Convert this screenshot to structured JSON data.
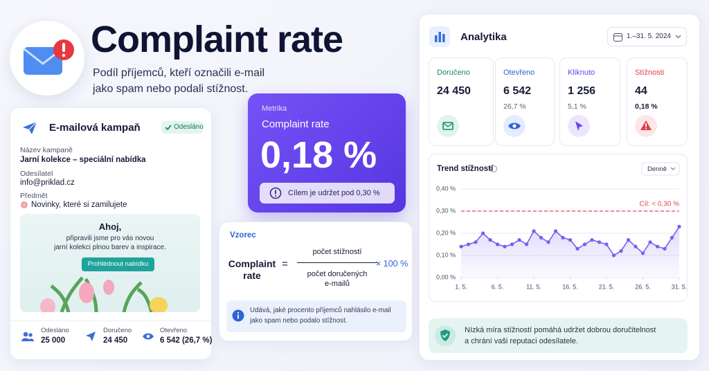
{
  "header": {
    "title": "Complaint rate",
    "subtitle": [
      "Podíl příjemců, kteří označili e-mail",
      "jako spam nebo podali stížnost."
    ]
  },
  "campaign": {
    "title": "E-mailová kampaň",
    "status": "Odesláno",
    "fields": [
      {
        "label": "Název kampaně",
        "value": "Jarní kolekce – speciální nabídka"
      },
      {
        "label": "Odesílatel",
        "value": "info@priklad.cz"
      },
      {
        "label": "Předmět",
        "value": "Novinky, které si zamilujete"
      }
    ],
    "preview": {
      "heading": "Ahoj,",
      "body": [
        "připravili jsme pro vás novou",
        "jarní kolekci plnou barev a inspirace."
      ],
      "button": "Prohlédnout nabídku"
    },
    "stats": [
      {
        "label": "Odesláno",
        "value": "25 000"
      },
      {
        "label": "Doručeno",
        "value": "24 450"
      },
      {
        "label": "Otevřeno",
        "value": "6 542 (26,7 %)"
      }
    ]
  },
  "metric": {
    "label": "Metrika",
    "name": "Complaint rate",
    "value": "0,18 %",
    "note": "Cílem je udržet pod 0,30 %"
  },
  "formula": {
    "label": "Vzorec",
    "left": [
      "Complaint",
      "rate"
    ],
    "equals": "=",
    "numerator": "počet stížností",
    "denominator": [
      "počet doručených",
      "e-mailů"
    ],
    "multiplier": "× 100 %",
    "info": [
      "Udává, jaké procento příjemců nahlásilo e-mail",
      "jako spam nebo podalo stížnost."
    ]
  },
  "analytics": {
    "title": "Analytika",
    "date_range": "1.–31. 5. 2024",
    "kpis": [
      {
        "label": "Doručeno",
        "value": "24 450"
      },
      {
        "label": "Otevřeno",
        "value": "6 542",
        "sub": "26,7 %"
      },
      {
        "label": "Kliknuto",
        "value": "1 256",
        "sub": "5,1 %"
      },
      {
        "label": "Stížnosti",
        "value": "44",
        "sub": "0,18 %"
      }
    ],
    "footer": [
      "Nízká míra stížností pomáhá udržet dobrou doručitelnost",
      "a chrání vaši reputaci odesílatele."
    ]
  },
  "chart_data": {
    "type": "line",
    "title": "Trend stížností",
    "period": "Denně",
    "x": [
      1,
      2,
      3,
      4,
      5,
      6,
      7,
      8,
      9,
      10,
      11,
      12,
      13,
      14,
      15,
      16,
      17,
      18,
      19,
      20,
      21,
      22,
      23,
      24,
      25,
      26,
      27,
      28,
      29,
      30,
      31
    ],
    "values": [
      0.14,
      0.15,
      0.16,
      0.2,
      0.17,
      0.15,
      0.14,
      0.15,
      0.17,
      0.15,
      0.21,
      0.18,
      0.16,
      0.21,
      0.18,
      0.17,
      0.13,
      0.15,
      0.17,
      0.16,
      0.15,
      0.1,
      0.12,
      0.17,
      0.14,
      0.11,
      0.16,
      0.14,
      0.13,
      0.18,
      0.23
    ],
    "color": "#7b5cf0",
    "xlim": [
      1,
      31
    ],
    "xticks": [
      {
        "value": 1,
        "label": "1. 5."
      },
      {
        "value": 6,
        "label": "6. 5."
      },
      {
        "value": 11,
        "label": "11. 5."
      },
      {
        "value": 16,
        "label": "16. 5."
      },
      {
        "value": 21,
        "label": "21. 5."
      },
      {
        "value": 26,
        "label": "26. 5."
      },
      {
        "value": 31,
        "label": "31. 5."
      }
    ],
    "ylim": [
      0,
      0.4
    ],
    "yticks": [
      {
        "value": 0,
        "label": "0,00 %"
      },
      {
        "value": 0.1,
        "label": "0,10 %"
      },
      {
        "value": 0.2,
        "label": "0,20 %"
      },
      {
        "value": 0.3,
        "label": "0,30 %"
      },
      {
        "value": 0.4,
        "label": "0,40 %"
      }
    ],
    "grid": true,
    "target": {
      "value": 0.3,
      "label": "Cíl: < 0,30 %",
      "color": "#e5484d"
    }
  }
}
